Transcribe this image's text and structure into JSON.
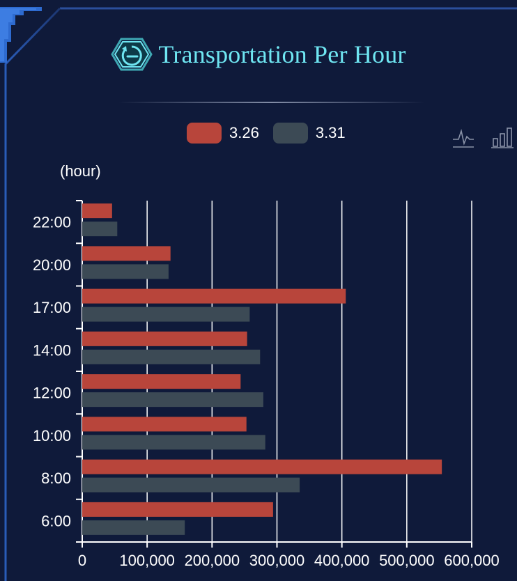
{
  "header": {
    "title": "Transportation Per Hour",
    "icon": "clock-back-icon"
  },
  "toolbox": {
    "line_icon": "line-chart-icon",
    "bar_icon": "bar-chart-icon"
  },
  "colors": {
    "background": "#0f1a3a",
    "title": "#6fe6f2",
    "series_a": "#b8453b",
    "series_b": "#3c4a55",
    "grid": "#ffffff"
  },
  "chart_data": {
    "type": "bar",
    "orientation": "horizontal",
    "ylabel": "(hour)",
    "categories": [
      "6:00",
      "8:00",
      "10:00",
      "12:00",
      "14:00",
      "17:00",
      "20:00",
      "22:00"
    ],
    "series": [
      {
        "name": "3.26",
        "values": [
          294000,
          554000,
          253000,
          244000,
          254000,
          406000,
          136000,
          46000
        ]
      },
      {
        "name": "3.31",
        "values": [
          158000,
          335000,
          282000,
          279000,
          274000,
          258000,
          133000,
          54000
        ]
      }
    ],
    "x_ticks": [
      "0",
      "100,000",
      "200,000",
      "300,000",
      "400,000",
      "500,000",
      "600,000"
    ],
    "xlim": [
      0,
      600000
    ],
    "grid": true,
    "legend_position": "top-center"
  }
}
